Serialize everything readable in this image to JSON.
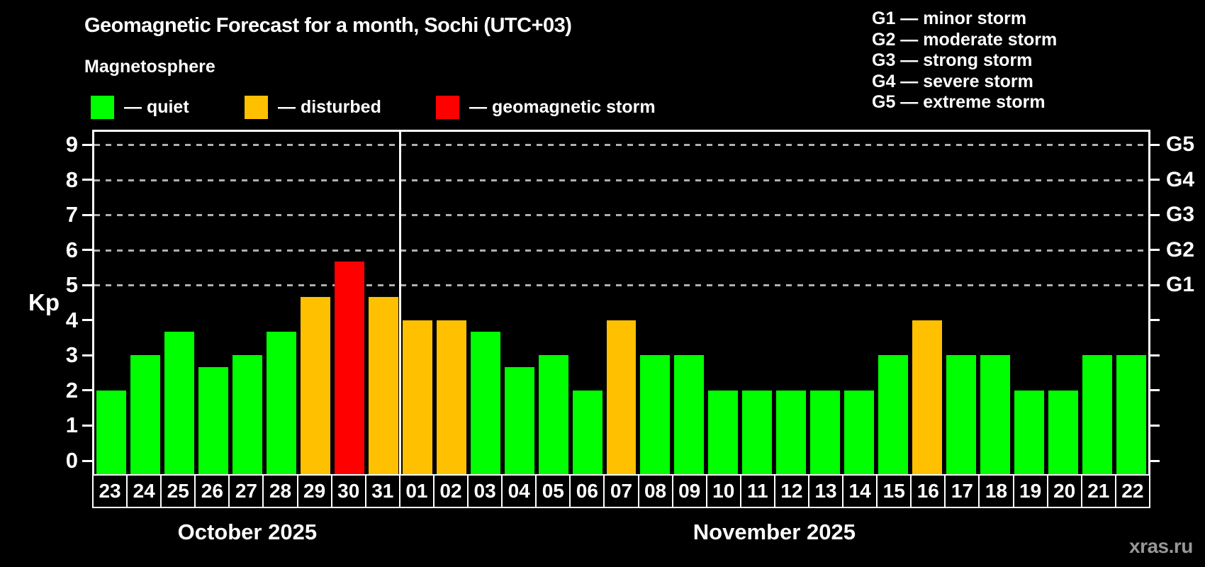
{
  "title": "Geomagnetic Forecast for a month, Sochi (UTC+03)",
  "subtitle": "Magnetosphere",
  "legend": {
    "items": [
      {
        "label": "— quiet",
        "status": "quiet"
      },
      {
        "label": "— disturbed",
        "status": "disturbed"
      },
      {
        "label": "— geomagnetic storm",
        "status": "storm"
      }
    ]
  },
  "g_scale_legend": [
    "G1 — minor storm",
    "G2 — moderate storm",
    "G3 — strong storm",
    "G4 — severe storm",
    "G5 — extreme storm"
  ],
  "watermark": "xras.ru",
  "chart_data": {
    "type": "bar",
    "ylabel": "Kp",
    "ylim": [
      0,
      9.4
    ],
    "yticks": [
      "0",
      "1",
      "2",
      "3",
      "4",
      "5",
      "6",
      "7",
      "8",
      "9"
    ],
    "grid_on": true,
    "grid_kp": [
      5,
      6,
      7,
      8,
      9
    ],
    "right_axis_labels": [
      {
        "kp": 5,
        "label": "G1"
      },
      {
        "kp": 6,
        "label": "G2"
      },
      {
        "kp": 7,
        "label": "G3"
      },
      {
        "kp": 8,
        "label": "G4"
      },
      {
        "kp": 9,
        "label": "G5"
      }
    ],
    "status_colors": {
      "quiet": "#00ff00",
      "disturbed": "#ffc000",
      "storm": "#ff0000"
    },
    "bars": [
      {
        "date": "23",
        "kp": 2,
        "status": "quiet"
      },
      {
        "date": "24",
        "kp": 3,
        "status": "quiet"
      },
      {
        "date": "25",
        "kp": 3.67,
        "status": "quiet"
      },
      {
        "date": "26",
        "kp": 2.67,
        "status": "quiet"
      },
      {
        "date": "27",
        "kp": 3,
        "status": "quiet"
      },
      {
        "date": "28",
        "kp": 3.67,
        "status": "quiet"
      },
      {
        "date": "29",
        "kp": 4.67,
        "status": "disturbed"
      },
      {
        "date": "30",
        "kp": 5.67,
        "status": "storm"
      },
      {
        "date": "31",
        "kp": 4.67,
        "status": "disturbed"
      },
      {
        "date": "01",
        "kp": 4,
        "status": "disturbed"
      },
      {
        "date": "02",
        "kp": 4,
        "status": "disturbed"
      },
      {
        "date": "03",
        "kp": 3.67,
        "status": "quiet"
      },
      {
        "date": "04",
        "kp": 2.67,
        "status": "quiet"
      },
      {
        "date": "05",
        "kp": 3,
        "status": "quiet"
      },
      {
        "date": "06",
        "kp": 2,
        "status": "quiet"
      },
      {
        "date": "07",
        "kp": 4,
        "status": "disturbed"
      },
      {
        "date": "08",
        "kp": 3,
        "status": "quiet"
      },
      {
        "date": "09",
        "kp": 3,
        "status": "quiet"
      },
      {
        "date": "10",
        "kp": 2,
        "status": "quiet"
      },
      {
        "date": "11",
        "kp": 2,
        "status": "quiet"
      },
      {
        "date": "12",
        "kp": 2,
        "status": "quiet"
      },
      {
        "date": "13",
        "kp": 2,
        "status": "quiet"
      },
      {
        "date": "14",
        "kp": 2,
        "status": "quiet"
      },
      {
        "date": "15",
        "kp": 3,
        "status": "quiet"
      },
      {
        "date": "16",
        "kp": 4,
        "status": "disturbed"
      },
      {
        "date": "17",
        "kp": 3,
        "status": "quiet"
      },
      {
        "date": "18",
        "kp": 3,
        "status": "quiet"
      },
      {
        "date": "19",
        "kp": 2,
        "status": "quiet"
      },
      {
        "date": "20",
        "kp": 2,
        "status": "quiet"
      },
      {
        "date": "21",
        "kp": 3,
        "status": "quiet"
      },
      {
        "date": "22",
        "kp": 3,
        "status": "quiet"
      }
    ],
    "months": [
      {
        "label": "October 2025",
        "from_index": 0,
        "to_index": 8
      },
      {
        "label": "November 2025",
        "from_index": 9,
        "to_index": 30
      }
    ]
  }
}
